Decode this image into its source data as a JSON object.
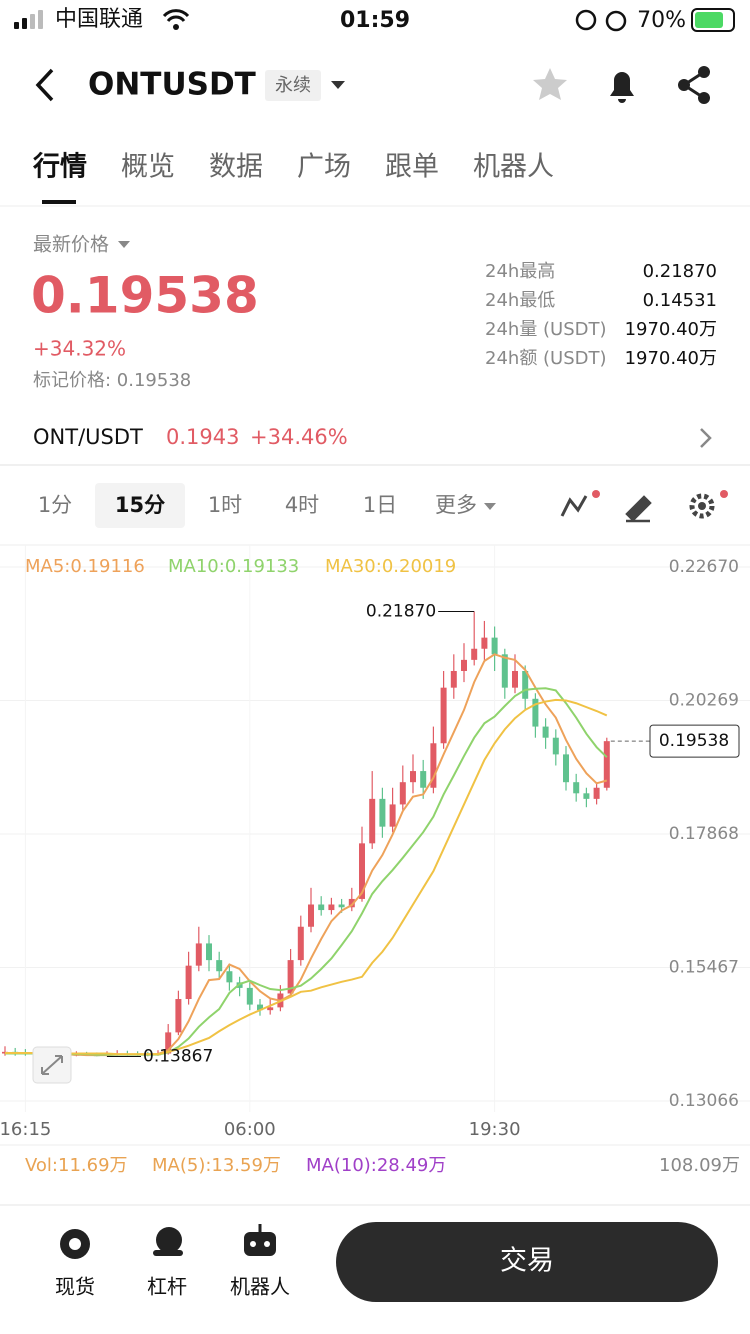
{
  "status_bar": {
    "carrier": "中国联通",
    "time": "01:59",
    "battery": "70%"
  },
  "header": {
    "symbol": "ONTUSDT",
    "badge": "永续"
  },
  "tabs": [
    "行情",
    "概览",
    "数据",
    "广场",
    "跟单",
    "机器人"
  ],
  "price": {
    "label": "最新价格",
    "last": "0.19538",
    "change": "+34.32%",
    "mark": "标记价格: 0.19538"
  },
  "stats": [
    {
      "label": "24h最高",
      "value": "0.21870"
    },
    {
      "label": "24h最低",
      "value": "0.14531"
    },
    {
      "label": "24h量 (USDT)",
      "value": "1970.40万"
    },
    {
      "label": "24h额 (USDT)",
      "value": "1970.40万"
    }
  ],
  "pair": {
    "name": "ONT/USDT",
    "price": "0.1943",
    "change": "+34.46%"
  },
  "intervals": {
    "items": [
      "1分",
      "15分",
      "1时",
      "4时",
      "1日",
      "更多"
    ],
    "selected": 1
  },
  "chart_data": {
    "type": "candlestick",
    "categories": [
      null,
      null,
      "16:15",
      null,
      null,
      null,
      null,
      null,
      null,
      null,
      null,
      null,
      null,
      null,
      null,
      null,
      null,
      null,
      null,
      null,
      null,
      null,
      null,
      null,
      "06:00",
      null,
      null,
      null,
      null,
      null,
      null,
      null,
      null,
      null,
      null,
      null,
      null,
      null,
      null,
      null,
      null,
      null,
      null,
      null,
      null,
      null,
      null,
      null,
      "19:30",
      null,
      null,
      null,
      null,
      null,
      null,
      null,
      null,
      null,
      null,
      null
    ],
    "open": [
      0.1392,
      0.1395,
      0.1393,
      0.1392,
      0.139,
      0.1391,
      0.1389,
      0.1388,
      0.139,
      0.1389,
      0.1388,
      0.139,
      0.1392,
      0.1391,
      0.139,
      0.1389,
      0.1392,
      0.143,
      0.149,
      0.155,
      0.159,
      0.156,
      0.154,
      0.152,
      0.151,
      0.148,
      0.147,
      0.1475,
      0.15,
      0.156,
      0.162,
      0.166,
      0.165,
      0.166,
      0.1655,
      0.167,
      0.177,
      0.185,
      0.18,
      0.184,
      0.188,
      0.19,
      0.187,
      0.195,
      0.205,
      0.208,
      0.21,
      0.212,
      0.214,
      0.211,
      0.205,
      0.208,
      0.203,
      0.198,
      0.196,
      0.193,
      0.188,
      0.186,
      0.185,
      0.187
    ],
    "high": [
      0.1405,
      0.1402,
      0.14,
      0.1398,
      0.1397,
      0.1396,
      0.1395,
      0.1396,
      0.1395,
      0.1394,
      0.1396,
      0.1398,
      0.1397,
      0.1396,
      0.1395,
      0.1398,
      0.1445,
      0.1505,
      0.1575,
      0.162,
      0.1605,
      0.1575,
      0.155,
      0.153,
      0.152,
      0.149,
      0.149,
      0.1515,
      0.158,
      0.164,
      0.169,
      0.1675,
      0.1672,
      0.167,
      0.169,
      0.18,
      0.19,
      0.187,
      0.187,
      0.191,
      0.193,
      0.192,
      0.198,
      0.208,
      0.211,
      0.213,
      0.2187,
      0.217,
      0.216,
      0.212,
      0.211,
      0.209,
      0.204,
      0.1995,
      0.1975,
      0.1945,
      0.1895,
      0.187,
      0.188,
      0.196
    ],
    "low": [
      0.1388,
      0.1388,
      0.1388,
      0.1387,
      0.1388,
      0.1387,
      0.1387,
      0.1387,
      0.1388,
      0.1387,
      0.13867,
      0.1388,
      0.1388,
      0.1388,
      0.1387,
      0.1388,
      0.139,
      0.1425,
      0.148,
      0.154,
      0.154,
      0.1525,
      0.1505,
      0.1495,
      0.147,
      0.146,
      0.1462,
      0.1468,
      0.1495,
      0.155,
      0.161,
      0.164,
      0.1642,
      0.1645,
      0.1648,
      0.1665,
      0.176,
      0.178,
      0.179,
      0.183,
      0.186,
      0.185,
      0.186,
      0.194,
      0.203,
      0.206,
      0.209,
      0.21,
      0.208,
      0.203,
      0.204,
      0.201,
      0.196,
      0.194,
      0.191,
      0.1865,
      0.1845,
      0.1835,
      0.184,
      0.1865
    ],
    "close": [
      0.1395,
      0.1393,
      0.1392,
      0.139,
      0.1391,
      0.1389,
      0.1388,
      0.139,
      0.1389,
      0.1388,
      0.139,
      0.1392,
      0.1391,
      0.139,
      0.1389,
      0.1392,
      0.143,
      0.149,
      0.155,
      0.159,
      0.156,
      0.154,
      0.152,
      0.151,
      0.148,
      0.147,
      0.1475,
      0.15,
      0.156,
      0.162,
      0.166,
      0.165,
      0.166,
      0.1655,
      0.167,
      0.177,
      0.185,
      0.18,
      0.184,
      0.188,
      0.19,
      0.187,
      0.195,
      0.205,
      0.208,
      0.21,
      0.212,
      0.214,
      0.211,
      0.205,
      0.208,
      0.203,
      0.198,
      0.196,
      0.193,
      0.188,
      0.186,
      0.185,
      0.187,
      0.19538
    ],
    "up_color": "#e15b64",
    "down_color": "#5fc28e",
    "series": [
      {
        "name": "MA5:0.19116",
        "color": "#eea25a",
        "values": [
          0.1392,
          0.1393,
          0.1393,
          0.1392,
          0.1392,
          0.1391,
          0.139,
          0.139,
          0.1389,
          0.1389,
          0.1389,
          0.139,
          0.139,
          0.139,
          0.139,
          0.1391,
          0.1398,
          0.1418,
          0.145,
          0.149,
          0.1524,
          0.1526,
          0.1552,
          0.1544,
          0.1522,
          0.1504,
          0.1491,
          0.1487,
          0.1497,
          0.1525,
          0.1563,
          0.1598,
          0.163,
          0.1649,
          0.1659,
          0.1681,
          0.1721,
          0.1749,
          0.1786,
          0.1828,
          0.1854,
          0.1858,
          0.1888,
          0.193,
          0.197,
          0.201,
          0.206,
          0.2098,
          0.211,
          0.2104,
          0.21,
          0.2082,
          0.205,
          0.202,
          0.1996,
          0.1956,
          0.1922,
          0.1896,
          0.1878,
          0.1883
        ]
      },
      {
        "name": "MA10:0.19133",
        "color": "#8fd36c",
        "values": [
          0.1392,
          0.1392,
          0.1392,
          0.1392,
          0.1392,
          0.1392,
          0.1391,
          0.1391,
          0.1391,
          0.139,
          0.139,
          0.139,
          0.139,
          0.139,
          0.139,
          0.139,
          0.1394,
          0.1404,
          0.1419,
          0.144,
          0.1457,
          0.1472,
          0.1501,
          0.1517,
          0.1523,
          0.1515,
          0.1508,
          0.1506,
          0.1509,
          0.1514,
          0.1527,
          0.1544,
          0.1563,
          0.1587,
          0.1612,
          0.1644,
          0.1679,
          0.1702,
          0.1722,
          0.1744,
          0.1767,
          0.179,
          0.1818,
          0.1858,
          0.1892,
          0.1927,
          0.196,
          0.1986,
          0.1998,
          0.2017,
          0.2035,
          0.2046,
          0.2048,
          0.2049,
          0.2045,
          0.2022,
          0.1996,
          0.1967,
          0.1943,
          0.1925
        ]
      },
      {
        "name": "MA30:0.20019",
        "color": "#f0c244",
        "values": [
          0.1393,
          0.1393,
          0.1393,
          0.1393,
          0.1393,
          0.1392,
          0.1392,
          0.1392,
          0.1392,
          0.1392,
          0.1392,
          0.1391,
          0.1391,
          0.1391,
          0.1391,
          0.1391,
          0.1395,
          0.14,
          0.1406,
          0.1413,
          0.142,
          0.1432,
          0.1443,
          0.1453,
          0.1462,
          0.147,
          0.1478,
          0.1486,
          0.1494,
          0.1503,
          0.1505,
          0.1511,
          0.1516,
          0.1521,
          0.1525,
          0.153,
          0.1555,
          0.1575,
          0.16,
          0.163,
          0.166,
          0.169,
          0.172,
          0.176,
          0.18,
          0.184,
          0.188,
          0.192,
          0.195,
          0.1975,
          0.1995,
          0.201,
          0.202,
          0.2025,
          0.2028,
          0.2027,
          0.2022,
          0.2015,
          0.2008,
          0.2
        ]
      }
    ],
    "ylim": [
      0.12868,
      0.23066
    ],
    "yticks": [
      {
        "value": 0.2267,
        "label": "0.22670"
      },
      0.20269,
      0.17868,
      0.15467,
      0.13066
    ],
    "grid": true,
    "high_label": "0.21870",
    "low_label": "0.13867",
    "last_label": "0.19538"
  },
  "volume": {
    "vol": "Vol:11.69万",
    "ma5": "MA(5):13.59万",
    "ma10": "MA(10):28.49万",
    "max": "108.09万"
  },
  "bottom_nav": [
    "现货",
    "杠杆",
    "机器人"
  ],
  "trade_button": "交易"
}
